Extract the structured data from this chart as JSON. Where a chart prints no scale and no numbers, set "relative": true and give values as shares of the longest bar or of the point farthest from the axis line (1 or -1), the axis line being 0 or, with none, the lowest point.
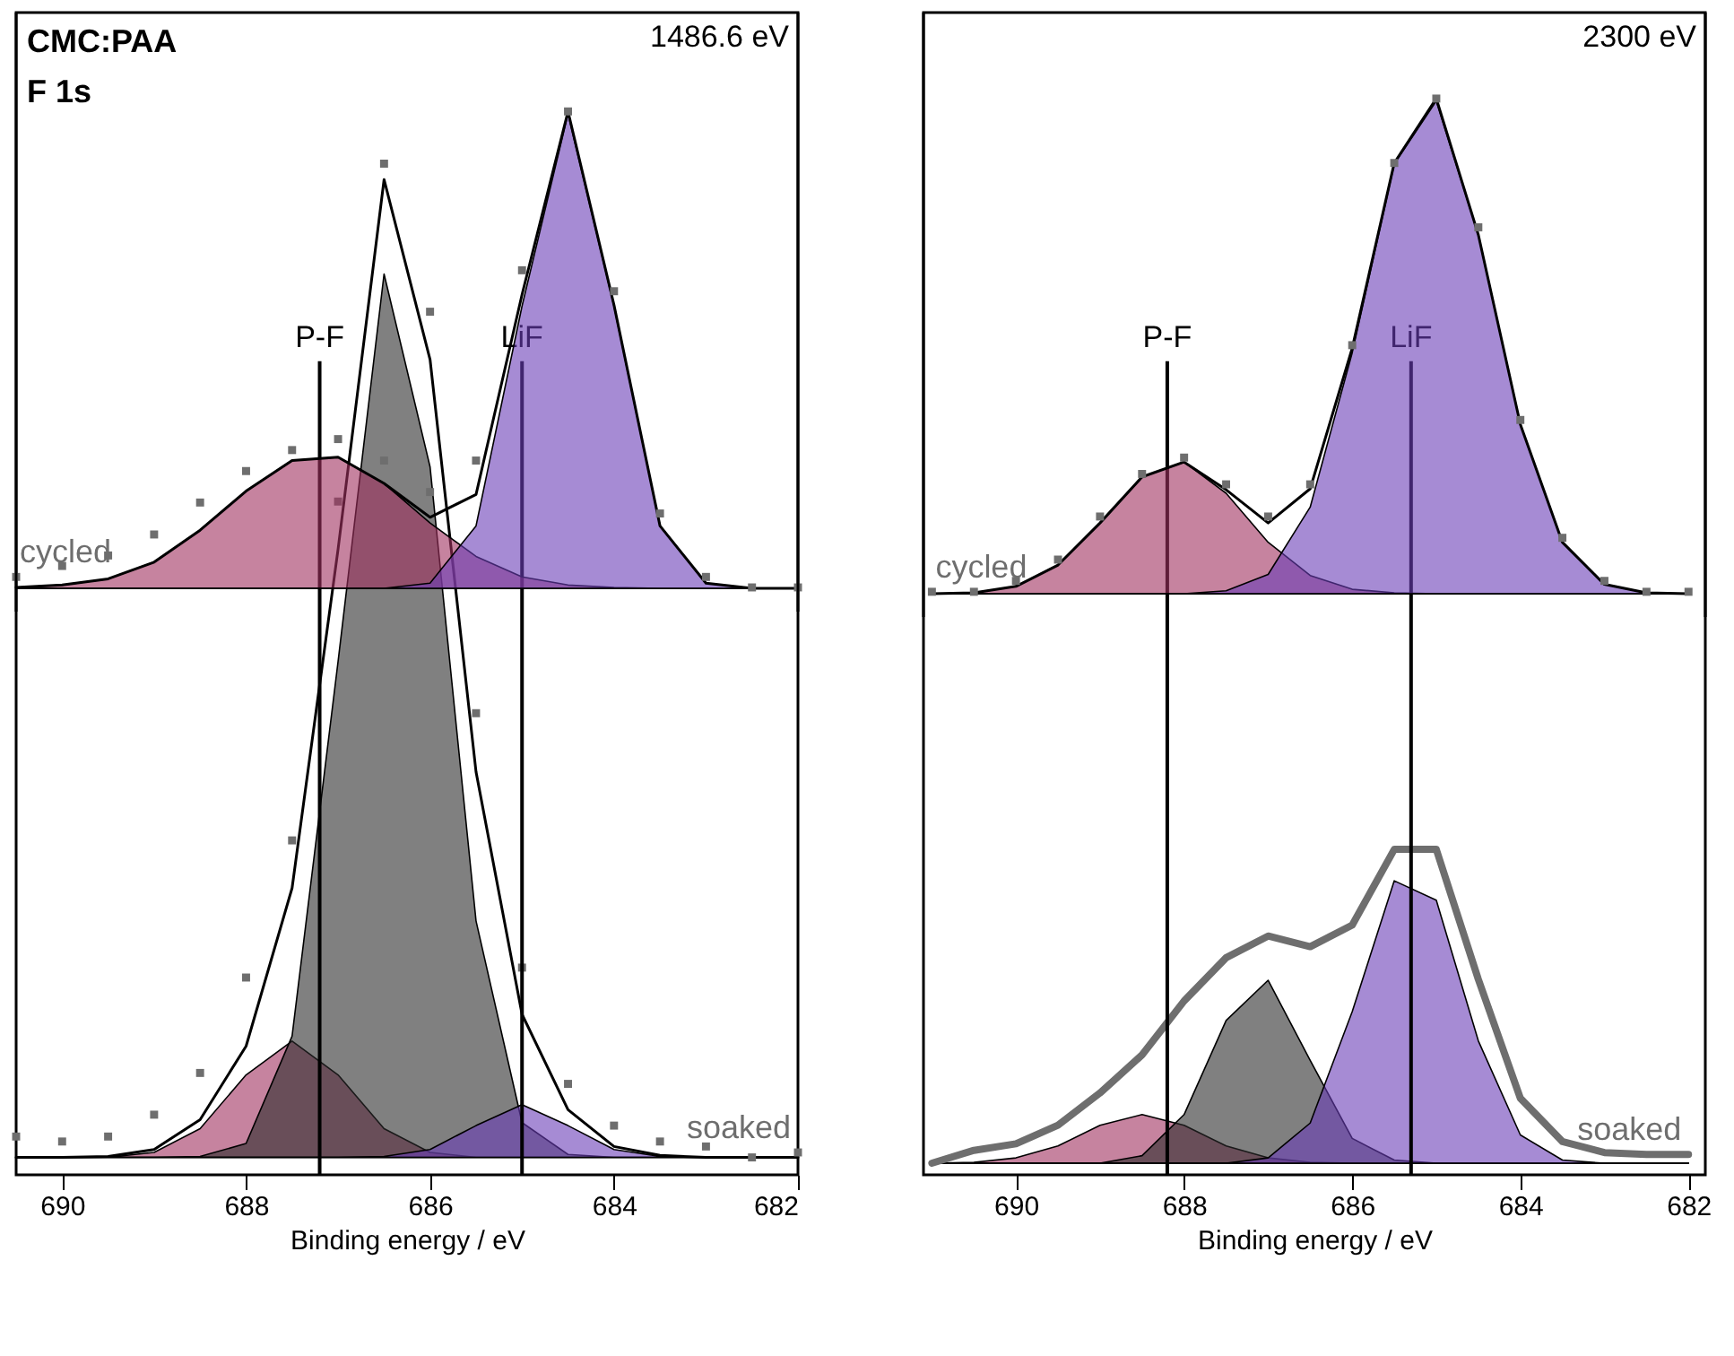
{
  "chart_data": [
    {
      "type": "line",
      "title": "1486.6 eV",
      "relative": true,
      "tick_labels": false,
      "line_style": "solid",
      "annotations": [
        "CMC:PAA",
        "F 1s"
      ],
      "xlim": [
        690.5,
        682
      ],
      "x": [
        690.5,
        690,
        689.5,
        689,
        688.5,
        688,
        687.5,
        687,
        686.5,
        686,
        685.5,
        685,
        684.5,
        684,
        683.5,
        683,
        682.5,
        682
      ],
      "series": [
        {
          "type": "area",
          "color": "#a0305f",
          "values": [
            0.002,
            0.007,
            0.02,
            0.055,
            0.122,
            0.204,
            0.268,
            0.275,
            0.22,
            0.137,
            0.067,
            0.024,
            0.007,
            0.002,
            0,
            0,
            0,
            0
          ]
        },
        {
          "type": "area",
          "color": "#6a3db8",
          "values": [
            0,
            0,
            0,
            0,
            0,
            0,
            0,
            0,
            0,
            0.011,
            0.131,
            0.592,
            0.995,
            0.592,
            0.131,
            0.011,
            0,
            0
          ]
        },
        {
          "color": "#000000",
          "values": [
            0.002,
            0.007,
            0.02,
            0.055,
            0.122,
            0.204,
            0.268,
            0.275,
            0.22,
            0.149,
            0.197,
            0.616,
            1.0,
            0.594,
            0.131,
            0.011,
            0,
            0
          ]
        },
        {
          "type": "scatter",
          "name": "cycled",
          "marker": "square",
          "color": "#6e6e6e",
          "values": [
            0.024,
            0.047,
            0.069,
            0.113,
            0.18,
            0.246,
            0.29,
            0.313,
            0.268,
            0.202,
            0.268,
            0.667,
            1.0,
            0.623,
            0.157,
            0.024,
            0.002,
            0.002
          ]
        }
      ]
    },
    {
      "type": "line",
      "xlabel": "Binding energy / eV",
      "relative": true,
      "tick_labels": "x",
      "line_style": "solid",
      "xlim": [
        690.5,
        682
      ],
      "xticks": [
        690,
        688,
        686,
        684,
        682
      ],
      "x": [
        690.5,
        690,
        689.5,
        689,
        688.5,
        688,
        687.5,
        687,
        686.5,
        686,
        685.5,
        685,
        684.5,
        684,
        683.5,
        683,
        682.5,
        682
      ],
      "ref_lines": [
        {
          "axis": "x",
          "value": 687.2,
          "label": "P-F"
        },
        {
          "axis": "x",
          "value": 685.0,
          "label": "LiF"
        }
      ],
      "series": [
        {
          "type": "area",
          "color": "#a0305f",
          "values": [
            0,
            0,
            0,
            0.005,
            0.029,
            0.083,
            0.117,
            0.083,
            0.029,
            0.005,
            0,
            0,
            0,
            0,
            0,
            0,
            0,
            0
          ]
        },
        {
          "type": "area",
          "color": "#2b2b2b",
          "values": [
            0,
            0,
            0,
            0,
            0.001,
            0.014,
            0.122,
            0.499,
            0.889,
            0.695,
            0.238,
            0.035,
            0.003,
            0,
            0,
            0,
            0,
            0
          ]
        },
        {
          "type": "area",
          "color": "#6a3db8",
          "values": [
            0,
            0,
            0,
            0,
            0,
            0,
            0,
            0,
            0.001,
            0.008,
            0.032,
            0.053,
            0.032,
            0.008,
            0.001,
            0,
            0,
            0
          ]
        },
        {
          "color": "#000000",
          "values": [
            0,
            0,
            0.001,
            0.008,
            0.038,
            0.112,
            0.271,
            0.612,
            0.984,
            0.803,
            0.388,
            0.144,
            0.048,
            0.011,
            0.002,
            0,
            0,
            0
          ]
        },
        {
          "type": "scatter",
          "name": "soaked",
          "marker": "square",
          "color": "#6e6e6e",
          "values": [
            0.021,
            0.016,
            0.021,
            0.043,
            0.085,
            0.181,
            0.319,
            0.66,
            1.0,
            0.851,
            0.447,
            0.191,
            0.074,
            0.032,
            0.016,
            0.011,
            0,
            0.005
          ]
        }
      ]
    },
    {
      "type": "line",
      "title": "2300 eV",
      "relative": true,
      "tick_labels": false,
      "line_style": "solid",
      "xlim": [
        691.1,
        681.8
      ],
      "x": [
        691,
        690.5,
        690,
        689.5,
        689,
        688.5,
        688,
        687.5,
        687,
        686.5,
        686,
        685.5,
        685,
        684.5,
        684,
        683.5,
        683,
        682.5,
        682
      ],
      "series": [
        {
          "type": "area",
          "color": "#a0305f",
          "values": [
            0,
            0.002,
            0.015,
            0.058,
            0.143,
            0.236,
            0.266,
            0.203,
            0.104,
            0.037,
            0.009,
            0.002,
            0,
            0,
            0,
            0,
            0,
            0,
            0
          ]
        },
        {
          "type": "area",
          "color": "#6a3db8",
          "values": [
            0,
            0,
            0,
            0,
            0,
            0,
            0,
            0.006,
            0.039,
            0.175,
            0.487,
            0.868,
            0.995,
            0.725,
            0.342,
            0.104,
            0.019,
            0.002,
            0
          ]
        },
        {
          "color": "#000000",
          "values": [
            0,
            0.002,
            0.015,
            0.058,
            0.143,
            0.236,
            0.266,
            0.21,
            0.143,
            0.212,
            0.496,
            0.87,
            1.0,
            0.725,
            0.342,
            0.104,
            0.019,
            0.002,
            0
          ]
        },
        {
          "type": "scatter",
          "name": "cycled",
          "marker": "square",
          "color": "#6e6e6e",
          "values": [
            0.004,
            0.004,
            0.026,
            0.069,
            0.156,
            0.242,
            0.275,
            0.221,
            0.156,
            0.221,
            0.502,
            0.87,
            1.0,
            0.74,
            0.351,
            0.113,
            0.026,
            0.004,
            0.004
          ]
        }
      ]
    },
    {
      "type": "line",
      "xlabel": "Binding energy / eV",
      "relative": true,
      "tick_labels": "x",
      "line_style": "solid",
      "xlim": [
        691.1,
        681.8
      ],
      "xticks": [
        690,
        688,
        686,
        684,
        682
      ],
      "x": [
        691,
        690.5,
        690,
        689.5,
        689,
        688.5,
        688,
        687.5,
        687,
        686.5,
        686,
        685.5,
        685,
        684.5,
        684,
        683.5,
        683,
        682.5,
        682
      ],
      "ref_lines": [
        {
          "axis": "x",
          "value": 688.2,
          "label": "P-F"
        },
        {
          "axis": "x",
          "value": 685.3,
          "label": "LiF"
        }
      ],
      "series": [
        {
          "type": "area",
          "color": "#a0305f",
          "values": [
            0,
            0.003,
            0.017,
            0.055,
            0.121,
            0.155,
            0.121,
            0.055,
            0.017,
            0.003,
            0,
            0,
            0,
            0,
            0,
            0,
            0,
            0,
            0
          ]
        },
        {
          "type": "area",
          "color": "#2b2b2b",
          "values": [
            0,
            0,
            0,
            0,
            0,
            0.024,
            0.155,
            0.455,
            0.583,
            0.328,
            0.079,
            0.01,
            0,
            0,
            0,
            0,
            0,
            0,
            0
          ]
        },
        {
          "type": "area",
          "color": "#6a3db8",
          "values": [
            0,
            0,
            0,
            0,
            0,
            0,
            0,
            0,
            0.017,
            0.128,
            0.483,
            0.9,
            0.838,
            0.39,
            0.09,
            0.01,
            0,
            0,
            0
          ]
        },
        {
          "name": "soaked",
          "color": "#6e6e6e",
          "values": [
            0,
            0.041,
            0.062,
            0.121,
            0.224,
            0.345,
            0.517,
            0.655,
            0.724,
            0.69,
            0.759,
            1.0,
            1.0,
            0.586,
            0.207,
            0.069,
            0.034,
            0.028,
            0.028
          ]
        }
      ]
    }
  ]
}
